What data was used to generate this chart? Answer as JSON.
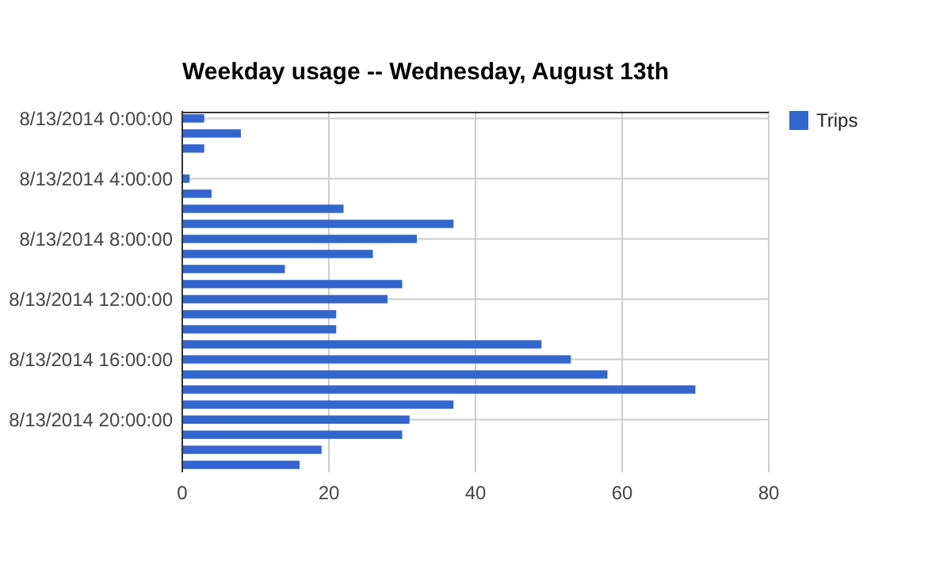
{
  "chart_data": {
    "type": "bar",
    "orientation": "horizontal",
    "title": "Weekday usage -- Wednesday, August 13th",
    "categories": [
      "8/13/2014 0:00:00",
      null,
      null,
      null,
      "8/13/2014 4:00:00",
      null,
      null,
      null,
      "8/13/2014 8:00:00",
      null,
      null,
      null,
      "8/13/2014 12:00:00",
      null,
      null,
      null,
      "8/13/2014 16:00:00",
      null,
      null,
      null,
      "8/13/2014 20:00:00",
      null,
      null,
      null
    ],
    "series": [
      {
        "name": "Trips",
        "color": "#3366cc",
        "values": [
          3,
          8,
          3,
          0,
          1,
          4,
          22,
          37,
          32,
          26,
          14,
          30,
          28,
          21,
          21,
          49,
          53,
          58,
          70,
          37,
          31,
          30,
          19,
          16
        ]
      }
    ],
    "xlim": [
      0,
      80
    ],
    "xticks": [
      0,
      20,
      40,
      60,
      80
    ],
    "grid": true,
    "legend": "top right"
  }
}
